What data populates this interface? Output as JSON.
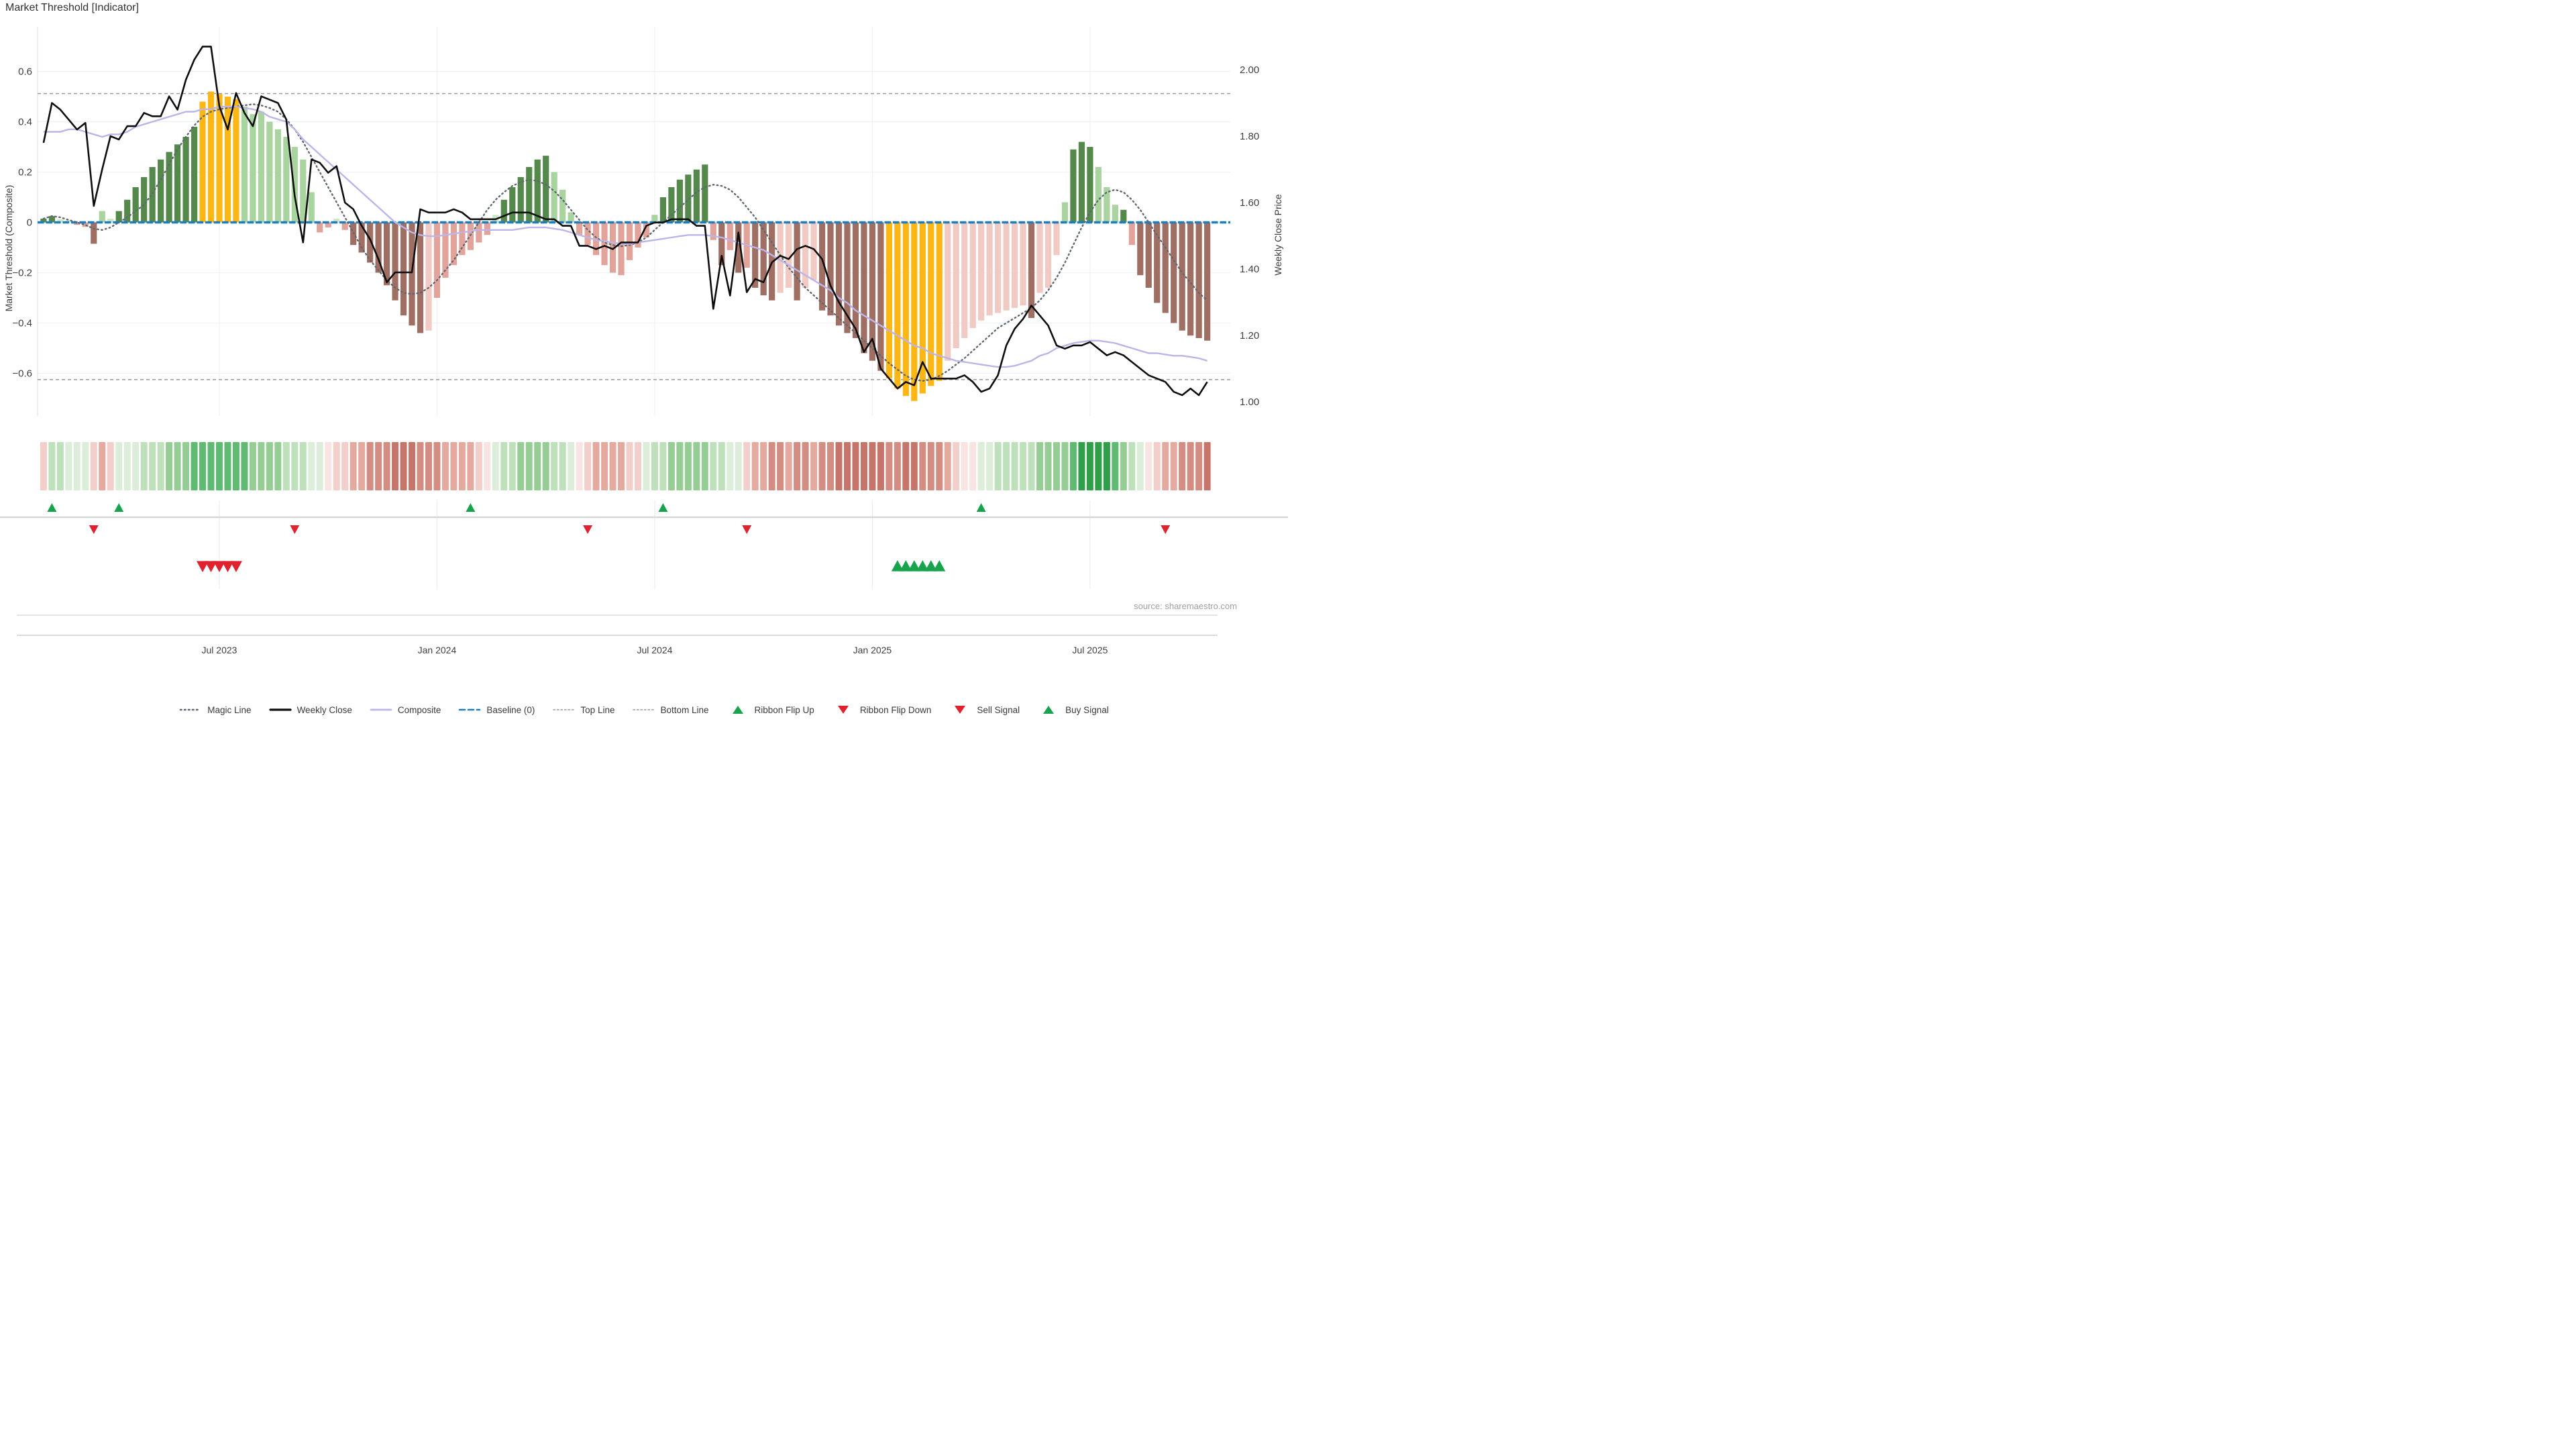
{
  "title": "Market Threshold [Indicator]",
  "source_note": "source: sharemaestro.com",
  "axes": {
    "left_label": "Market Threshold (Composite)",
    "right_label": "Weekly Close Price",
    "left_ticks": [
      {
        "label": "0.6",
        "v": 0.6
      },
      {
        "label": "0.4",
        "v": 0.4
      },
      {
        "label": "0.2",
        "v": 0.2
      },
      {
        "label": "0",
        "v": 0
      },
      {
        "label": "−0.2",
        "v": -0.2
      },
      {
        "label": "−0.4",
        "v": -0.4
      },
      {
        "label": "−0.6",
        "v": -0.6
      }
    ],
    "right_ticks": [
      {
        "label": "2.00",
        "p": 2.0
      },
      {
        "label": "1.80",
        "p": 1.8
      },
      {
        "label": "1.60",
        "p": 1.6
      },
      {
        "label": "1.40",
        "p": 1.4
      },
      {
        "label": "1.20",
        "p": 1.2
      },
      {
        "label": "1.00",
        "p": 1.0
      }
    ],
    "x_ticks": [
      {
        "label": "Jul 2023",
        "week": 21
      },
      {
        "label": "Jan 2024",
        "week": 47
      },
      {
        "label": "Jul 2024",
        "week": 73
      },
      {
        "label": "Jan 2025",
        "week": 99
      },
      {
        "label": "Jul 2025",
        "week": 125
      }
    ]
  },
  "colors": {
    "bars": {
      "dg": "#55894b",
      "lg": "#a9d49f",
      "pg": "#cde7c8",
      "y": "#fcb714",
      "p": "#e2a49a",
      "lp": "#f0cac3",
      "m": "#a06f64"
    },
    "ribbon": {
      "g1": "#dceeda",
      "g2": "#bee0bb",
      "g3": "#96cd94",
      "g4": "#5fba72",
      "g5": "#2f9f4a",
      "r1": "#f8e4e2",
      "r2": "#f2cfca",
      "r3": "#e4aaa0",
      "r4": "#d38d82",
      "r5": "#c57569"
    },
    "lines": {
      "weekly_close": "#0e0e0e",
      "composite": "#bcb5e9",
      "magic": "#5f6770",
      "baseline": "#1d7dbd",
      "top_bottom": "#9a9a9a",
      "grid": "#eff1f6",
      "panel_grid": "#ececec",
      "divider": "#d6d6d6",
      "spine": "#e2e2e2",
      "axis_bottom": "#cfcfcf"
    },
    "signals": {
      "up": "#18a44c",
      "down": "#e0222f"
    },
    "text": {
      "title": "#303030",
      "tick": "#3f3f3f",
      "source": "#a0a0a0"
    }
  },
  "legend": [
    {
      "label": "Magic Line",
      "swatch": "magic"
    },
    {
      "label": "Weekly Close",
      "swatch": "close"
    },
    {
      "label": "Composite",
      "swatch": "composite"
    },
    {
      "label": "Baseline (0)",
      "swatch": "baseline"
    },
    {
      "label": "Top Line",
      "swatch": "dotted"
    },
    {
      "label": "Bottom Line",
      "swatch": "dotted"
    },
    {
      "label": "Ribbon Flip Up",
      "swatch": "tri-up"
    },
    {
      "label": "Ribbon Flip Down",
      "swatch": "tri-down"
    },
    {
      "label": "Sell Signal",
      "swatch": "tri-down"
    },
    {
      "label": "Buy Signal",
      "swatch": "tri-up"
    }
  ],
  "chart_data": {
    "type": "mixed",
    "weeks": 140,
    "ylim_left": [
      -0.78,
      0.78
    ],
    "ylim_right": [
      0.95,
      2.1
    ],
    "baseline": 0,
    "top_line": 0.512,
    "bottom_line": -0.625,
    "threshold_bars": {
      "values": [
        0.015,
        0.025,
        0.012,
        0.008,
        -0.01,
        -0.018,
        -0.085,
        0.045,
        0.015,
        0.045,
        0.09,
        0.14,
        0.18,
        0.22,
        0.25,
        0.28,
        0.31,
        0.34,
        0.38,
        0.48,
        0.52,
        0.51,
        0.5,
        0.49,
        0.46,
        0.43,
        0.44,
        0.4,
        0.37,
        0.34,
        0.3,
        0.25,
        0.12,
        -0.04,
        -0.02,
        0.015,
        -0.03,
        -0.09,
        -0.12,
        -0.16,
        -0.2,
        -0.25,
        -0.31,
        -0.37,
        -0.41,
        -0.44,
        -0.43,
        -0.3,
        -0.22,
        -0.17,
        -0.13,
        -0.11,
        -0.08,
        -0.05,
        0.03,
        0.09,
        0.14,
        0.18,
        0.22,
        0.25,
        0.265,
        0.2,
        0.13,
        0.04,
        -0.05,
        -0.09,
        -0.13,
        -0.17,
        -0.2,
        -0.21,
        -0.15,
        -0.1,
        -0.06,
        0.03,
        0.1,
        0.14,
        0.17,
        0.19,
        0.21,
        0.23,
        -0.07,
        -0.17,
        -0.11,
        -0.2,
        -0.18,
        -0.26,
        -0.29,
        -0.31,
        -0.28,
        -0.26,
        -0.31,
        -0.26,
        -0.23,
        -0.35,
        -0.37,
        -0.41,
        -0.44,
        -0.46,
        -0.52,
        -0.55,
        -0.59,
        -0.62,
        -0.66,
        -0.69,
        -0.71,
        -0.68,
        -0.65,
        -0.63,
        -0.55,
        -0.5,
        -0.46,
        -0.42,
        -0.39,
        -0.37,
        -0.36,
        -0.35,
        -0.34,
        -0.33,
        -0.38,
        -0.28,
        -0.26,
        -0.13,
        0.08,
        0.29,
        0.32,
        0.3,
        0.22,
        0.14,
        0.07,
        0.05,
        -0.09,
        -0.21,
        -0.26,
        -0.32,
        -0.36,
        -0.4,
        -0.43,
        -0.45,
        -0.46,
        -0.47
      ],
      "color_keys": [
        "dg",
        "dg",
        "pg",
        "pg",
        "p",
        "p",
        "m",
        "lg",
        "pg",
        "dg",
        "dg",
        "dg",
        "dg",
        "dg",
        "dg",
        "dg",
        "dg",
        "dg",
        "dg",
        "y",
        "y",
        "y",
        "y",
        "y",
        "lg",
        "lg",
        "lg",
        "lg",
        "lg",
        "lg",
        "lg",
        "lg",
        "lg",
        "p",
        "p",
        "pg",
        "p",
        "m",
        "m",
        "m",
        "m",
        "m",
        "m",
        "m",
        "m",
        "m",
        "lp",
        "p",
        "p",
        "p",
        "p",
        "p",
        "p",
        "p",
        "pg",
        "dg",
        "dg",
        "dg",
        "dg",
        "dg",
        "dg",
        "lg",
        "lg",
        "lg",
        "p",
        "p",
        "p",
        "p",
        "p",
        "p",
        "p",
        "p",
        "p",
        "lg",
        "dg",
        "dg",
        "dg",
        "dg",
        "dg",
        "dg",
        "p",
        "m",
        "p",
        "m",
        "p",
        "m",
        "m",
        "m",
        "lp",
        "lp",
        "m",
        "lp",
        "lp",
        "m",
        "m",
        "m",
        "m",
        "m",
        "m",
        "m",
        "m",
        "y",
        "y",
        "y",
        "y",
        "y",
        "y",
        "y",
        "lp",
        "lp",
        "lp",
        "lp",
        "lp",
        "lp",
        "lp",
        "lp",
        "lp",
        "lp",
        "m",
        "lp",
        "lp",
        "lp",
        "lg",
        "dg",
        "dg",
        "dg",
        "lg",
        "lg",
        "lg",
        "dg",
        "p",
        "m",
        "m",
        "m",
        "m",
        "m",
        "m",
        "m",
        "m",
        "m"
      ]
    },
    "weekly_close": [
      1.78,
      1.9,
      1.88,
      1.85,
      1.82,
      1.84,
      1.59,
      1.7,
      1.8,
      1.79,
      1.83,
      1.83,
      1.87,
      1.86,
      1.86,
      1.92,
      1.88,
      1.97,
      2.03,
      2.07,
      2.07,
      1.89,
      1.82,
      1.93,
      1.87,
      1.83,
      1.92,
      1.91,
      1.9,
      1.85,
      1.62,
      1.48,
      1.73,
      1.72,
      1.69,
      1.71,
      1.6,
      1.58,
      1.53,
      1.49,
      1.43,
      1.36,
      1.39,
      1.39,
      1.39,
      1.58,
      1.57,
      1.57,
      1.57,
      1.58,
      1.57,
      1.55,
      1.55,
      1.55,
      1.55,
      1.56,
      1.57,
      1.57,
      1.57,
      1.56,
      1.55,
      1.55,
      1.53,
      1.53,
      1.47,
      1.47,
      1.46,
      1.47,
      1.46,
      1.48,
      1.48,
      1.48,
      1.53,
      1.54,
      1.54,
      1.55,
      1.55,
      1.55,
      1.53,
      1.53,
      1.28,
      1.44,
      1.32,
      1.51,
      1.33,
      1.37,
      1.36,
      1.42,
      1.44,
      1.43,
      1.46,
      1.47,
      1.46,
      1.43,
      1.35,
      1.3,
      1.26,
      1.22,
      1.15,
      1.19,
      1.1,
      1.07,
      1.04,
      1.06,
      1.05,
      1.12,
      1.07,
      1.07,
      1.07,
      1.07,
      1.08,
      1.06,
      1.03,
      1.04,
      1.08,
      1.17,
      1.22,
      1.25,
      1.29,
      1.26,
      1.23,
      1.17,
      1.16,
      1.17,
      1.17,
      1.18,
      1.16,
      1.14,
      1.15,
      1.14,
      1.12,
      1.1,
      1.08,
      1.07,
      1.06,
      1.03,
      1.02,
      1.04,
      1.02,
      1.06
    ],
    "composite": [
      0.36,
      0.36,
      0.36,
      0.37,
      0.37,
      0.36,
      0.35,
      0.34,
      0.35,
      0.35,
      0.36,
      0.38,
      0.39,
      0.4,
      0.41,
      0.42,
      0.43,
      0.44,
      0.44,
      0.45,
      0.45,
      0.46,
      0.46,
      0.46,
      0.455,
      0.45,
      0.44,
      0.42,
      0.41,
      0.4,
      0.37,
      0.33,
      0.3,
      0.27,
      0.24,
      0.21,
      0.18,
      0.15,
      0.12,
      0.09,
      0.06,
      0.03,
      0.0,
      -0.02,
      -0.04,
      -0.05,
      -0.055,
      -0.055,
      -0.05,
      -0.045,
      -0.04,
      -0.035,
      -0.03,
      -0.03,
      -0.03,
      -0.03,
      -0.03,
      -0.025,
      -0.02,
      -0.02,
      -0.02,
      -0.025,
      -0.03,
      -0.04,
      -0.05,
      -0.06,
      -0.07,
      -0.075,
      -0.08,
      -0.085,
      -0.085,
      -0.08,
      -0.075,
      -0.07,
      -0.065,
      -0.06,
      -0.055,
      -0.05,
      -0.05,
      -0.05,
      -0.055,
      -0.06,
      -0.07,
      -0.08,
      -0.09,
      -0.1,
      -0.11,
      -0.13,
      -0.15,
      -0.17,
      -0.19,
      -0.21,
      -0.23,
      -0.25,
      -0.27,
      -0.3,
      -0.32,
      -0.35,
      -0.37,
      -0.39,
      -0.41,
      -0.43,
      -0.45,
      -0.47,
      -0.49,
      -0.5,
      -0.52,
      -0.53,
      -0.54,
      -0.55,
      -0.555,
      -0.56,
      -0.565,
      -0.57,
      -0.575,
      -0.575,
      -0.57,
      -0.56,
      -0.55,
      -0.53,
      -0.52,
      -0.5,
      -0.49,
      -0.48,
      -0.475,
      -0.47,
      -0.47,
      -0.475,
      -0.48,
      -0.49,
      -0.5,
      -0.51,
      -0.52,
      -0.52,
      -0.525,
      -0.53,
      -0.53,
      -0.535,
      -0.54,
      -0.55
    ],
    "magic_line": [
      0.015,
      0.025,
      0.02,
      0.01,
      0.0,
      -0.01,
      -0.025,
      -0.03,
      -0.02,
      0.0,
      0.02,
      0.045,
      0.07,
      0.115,
      0.17,
      0.23,
      0.29,
      0.34,
      0.385,
      0.42,
      0.44,
      0.45,
      0.455,
      0.46,
      0.465,
      0.47,
      0.465,
      0.455,
      0.44,
      0.41,
      0.37,
      0.32,
      0.26,
      0.2,
      0.14,
      0.08,
      0.02,
      -0.04,
      -0.1,
      -0.15,
      -0.19,
      -0.23,
      -0.26,
      -0.28,
      -0.285,
      -0.28,
      -0.26,
      -0.23,
      -0.19,
      -0.15,
      -0.1,
      -0.05,
      0.0,
      0.05,
      0.09,
      0.12,
      0.145,
      0.16,
      0.17,
      0.165,
      0.15,
      0.125,
      0.09,
      0.05,
      0.01,
      -0.03,
      -0.06,
      -0.08,
      -0.09,
      -0.095,
      -0.09,
      -0.08,
      -0.06,
      -0.03,
      0.0,
      0.03,
      0.06,
      0.09,
      0.12,
      0.14,
      0.15,
      0.145,
      0.13,
      0.1,
      0.06,
      0.02,
      -0.03,
      -0.08,
      -0.13,
      -0.18,
      -0.22,
      -0.26,
      -0.29,
      -0.32,
      -0.35,
      -0.38,
      -0.41,
      -0.44,
      -0.47,
      -0.5,
      -0.53,
      -0.56,
      -0.585,
      -0.61,
      -0.625,
      -0.63,
      -0.625,
      -0.61,
      -0.59,
      -0.565,
      -0.54,
      -0.51,
      -0.48,
      -0.45,
      -0.42,
      -0.4,
      -0.38,
      -0.36,
      -0.34,
      -0.31,
      -0.27,
      -0.22,
      -0.16,
      -0.09,
      -0.02,
      0.04,
      0.09,
      0.12,
      0.13,
      0.12,
      0.09,
      0.05,
      0.0,
      -0.05,
      -0.1,
      -0.15,
      -0.2,
      -0.24,
      -0.28,
      -0.31
    ],
    "ribbon": [
      "r2",
      "g2",
      "g2",
      "g1",
      "g1",
      "g1",
      "r2",
      "r3",
      "r2",
      "g1",
      "g1",
      "g1",
      "g2",
      "g2",
      "g2",
      "g3",
      "g3",
      "g3",
      "g4",
      "g4",
      "g4",
      "g4",
      "g4",
      "g4",
      "g4",
      "g3",
      "g3",
      "g3",
      "g3",
      "g2",
      "g2",
      "g2",
      "g1",
      "g1",
      "r1",
      "r2",
      "r2",
      "r3",
      "r3",
      "r4",
      "r4",
      "r4",
      "r5",
      "r5",
      "r5",
      "r4",
      "r4",
      "r4",
      "r3",
      "r3",
      "r3",
      "r3",
      "r2",
      "r1",
      "g1",
      "g2",
      "g2",
      "g3",
      "g3",
      "g3",
      "g3",
      "g2",
      "g2",
      "g1",
      "r1",
      "r2",
      "r3",
      "r3",
      "r3",
      "r3",
      "r2",
      "r2",
      "g1",
      "g2",
      "g2",
      "g3",
      "g3",
      "g3",
      "g3",
      "g3",
      "g2",
      "g2",
      "g1",
      "g1",
      "r2",
      "r3",
      "r3",
      "r4",
      "r4",
      "r3",
      "r4",
      "r4",
      "r3",
      "r4",
      "r4",
      "r5",
      "r5",
      "r5",
      "r5",
      "r5",
      "r5",
      "r4",
      "r4",
      "r5",
      "r5",
      "r4",
      "r4",
      "r4",
      "r3",
      "r2",
      "r1",
      "r1",
      "g1",
      "g1",
      "g2",
      "g2",
      "g2",
      "g2",
      "g2",
      "g3",
      "g3",
      "g3",
      "g3",
      "g4",
      "g5",
      "g5",
      "g5",
      "g5",
      "g4",
      "g3",
      "g2",
      "g1",
      "r1",
      "r2",
      "r3",
      "r3",
      "r4",
      "r4",
      "r4",
      "r5"
    ],
    "signals": {
      "ribbon_flip_up_weeks": [
        1,
        9,
        51,
        74,
        112
      ],
      "ribbon_flip_down_weeks": [
        6,
        30,
        65,
        84,
        134
      ],
      "sell_signal_weeks": [
        19,
        20,
        21,
        22,
        23
      ],
      "buy_signal_weeks": [
        102,
        103,
        104,
        105,
        106,
        107
      ]
    }
  }
}
